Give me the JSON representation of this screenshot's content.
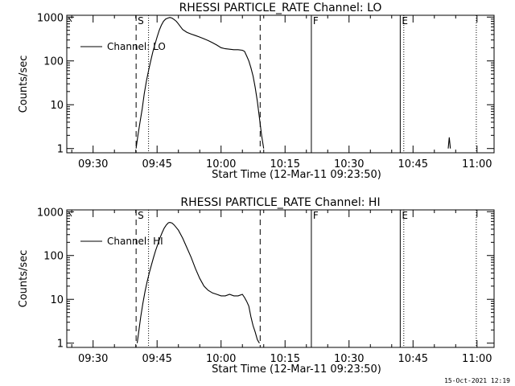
{
  "footer_date": "15-Oct-2021 12:19",
  "chart_data": [
    {
      "type": "line",
      "title": "RHESSI PARTICLE_RATE Channel: LO",
      "xlabel": "Start Time (12-Mar-11 09:23:50)",
      "ylabel": "Counts/sec",
      "y_scale": "log",
      "ylim": [
        0.8,
        1100
      ],
      "y_ticks": [
        1,
        10,
        100,
        1000
      ],
      "y_tick_labels": [
        "1",
        "10",
        "100",
        "1000"
      ],
      "xlim": [
        "09:23:50",
        "11:04:00"
      ],
      "x_ticks": [
        "09:30",
        "09:45",
        "10:00",
        "10:15",
        "10:30",
        "10:45",
        "11:00"
      ],
      "legend": {
        "label": "Channel: LO",
        "position": "top-left"
      },
      "markers": [
        {
          "label": "S",
          "time": "09:40:05",
          "style": "dashed"
        },
        {
          "label": "",
          "time": "09:43:00",
          "style": "dotted"
        },
        {
          "label": "",
          "time": "10:09:10",
          "style": "dashed"
        },
        {
          "label": "F",
          "time": "10:21:10",
          "style": "solid"
        },
        {
          "label": "E",
          "time": "10:42:00",
          "style": "solid"
        },
        {
          "label": "",
          "time": "10:42:50",
          "style": "dotted"
        },
        {
          "label": "",
          "time": "10:59:50",
          "style": "dotted"
        }
      ],
      "series": [
        {
          "x": [
            "09:40:05",
            "09:40:30",
            "09:41:00",
            "09:41:30",
            "09:42:00",
            "09:42:30",
            "09:43:00",
            "09:43:30",
            "09:44:00",
            "09:44:30",
            "09:45:00",
            "09:45:30",
            "09:46:00",
            "09:46:30",
            "09:47:00",
            "09:47:30",
            "09:48:00",
            "09:48:30",
            "09:49:00",
            "09:49:30",
            "09:50:00",
            "09:50:30",
            "09:51:00",
            "09:52:00",
            "09:53:00",
            "09:54:00",
            "09:55:00",
            "09:56:00",
            "09:57:00",
            "09:58:00",
            "09:59:00",
            "10:00:00",
            "10:01:00",
            "10:02:00",
            "10:03:00",
            "10:04:00",
            "10:05:00",
            "10:05:30",
            "10:06:00",
            "10:06:30",
            "10:07:00",
            "10:07:30",
            "10:08:00",
            "10:08:30",
            "10:09:00",
            "10:09:30",
            "10:10:00"
          ],
          "y": [
            1,
            2,
            4,
            8,
            18,
            35,
            60,
            100,
            160,
            240,
            350,
            500,
            650,
            800,
            900,
            950,
            980,
            950,
            880,
            800,
            700,
            600,
            520,
            450,
            410,
            380,
            350,
            320,
            290,
            260,
            230,
            200,
            190,
            185,
            180,
            180,
            175,
            165,
            130,
            100,
            70,
            45,
            25,
            12,
            5,
            2,
            1
          ]
        },
        {
          "x": [
            "10:53:15",
            "10:53:30",
            "10:53:45"
          ],
          "y": [
            1,
            1.8,
            1
          ]
        }
      ]
    },
    {
      "type": "line",
      "title": "RHESSI PARTICLE_RATE Channel: HI",
      "xlabel": "Start Time (12-Mar-11 09:23:50)",
      "ylabel": "Counts/sec",
      "y_scale": "log",
      "ylim": [
        0.8,
        1100
      ],
      "y_ticks": [
        1,
        10,
        100,
        1000
      ],
      "y_tick_labels": [
        "1",
        "10",
        "100",
        "1000"
      ],
      "xlim": [
        "09:23:50",
        "11:04:00"
      ],
      "x_ticks": [
        "09:30",
        "09:45",
        "10:00",
        "10:15",
        "10:30",
        "10:45",
        "11:00"
      ],
      "legend": {
        "label": "Channel: HI",
        "position": "top-left"
      },
      "markers": [
        {
          "label": "S",
          "time": "09:40:05",
          "style": "dashed"
        },
        {
          "label": "",
          "time": "09:43:00",
          "style": "dotted"
        },
        {
          "label": "",
          "time": "10:09:10",
          "style": "dashed"
        },
        {
          "label": "F",
          "time": "10:21:10",
          "style": "solid"
        },
        {
          "label": "E",
          "time": "10:42:00",
          "style": "solid"
        },
        {
          "label": "",
          "time": "10:42:50",
          "style": "dotted"
        },
        {
          "label": "",
          "time": "10:59:50",
          "style": "dotted"
        }
      ],
      "series": [
        {
          "x": [
            "09:40:20",
            "09:40:45",
            "09:41:10",
            "09:41:40",
            "09:42:10",
            "09:42:40",
            "09:43:10",
            "09:43:40",
            "09:44:10",
            "09:44:40",
            "09:45:10",
            "09:45:40",
            "09:46:10",
            "09:46:40",
            "09:47:10",
            "09:47:40",
            "09:48:00",
            "09:48:30",
            "09:49:00",
            "09:50:00",
            "09:51:00",
            "09:52:00",
            "09:53:00",
            "09:54:00",
            "09:55:00",
            "09:56:00",
            "09:57:00",
            "09:58:00",
            "09:59:00",
            "10:00:00",
            "10:01:00",
            "10:02:00",
            "10:03:00",
            "10:04:00",
            "10:05:00",
            "10:05:30",
            "10:06:00",
            "10:06:30",
            "10:07:00",
            "10:07:30",
            "10:08:00",
            "10:08:30",
            "10:09:00"
          ],
          "y": [
            1,
            2,
            4,
            8,
            15,
            25,
            40,
            60,
            90,
            130,
            180,
            250,
            330,
            420,
            500,
            560,
            570,
            550,
            500,
            380,
            250,
            150,
            90,
            50,
            30,
            20,
            16,
            14,
            13,
            12,
            12,
            13,
            12,
            12,
            13,
            11,
            9,
            7,
            4,
            2.5,
            1.8,
            1.2,
            1
          ]
        }
      ]
    }
  ]
}
